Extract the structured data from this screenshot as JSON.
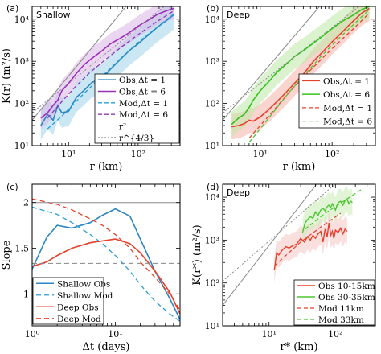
{
  "chart_data": [
    {
      "panel": "(a)",
      "title": "Shallow",
      "type": "line",
      "xscale": "log",
      "yscale": "log",
      "xlim": [
        3,
        400
      ],
      "ylim": [
        10,
        20000
      ],
      "xlabel": "r (km)",
      "ylabel": "K(r) (m²/s)",
      "xticks": [
        {
          "v": 10,
          "label": "10¹"
        },
        {
          "v": 100,
          "label": "10²"
        }
      ],
      "yticks": [
        {
          "v": 10,
          "label": "10¹"
        },
        {
          "v": 100,
          "label": "10²"
        },
        {
          "v": 1000,
          "label": "10³"
        },
        {
          "v": 10000,
          "label": "10⁴"
        }
      ],
      "legend_position": "bottom-right",
      "series": [
        {
          "name": "Obs,Δt = 1",
          "color": "#2c86c4",
          "dash": "",
          "width": 1.6,
          "band": "#9fd3ea",
          "band_w": 0.35,
          "x": [
            4,
            5,
            6,
            7,
            8,
            10,
            13,
            17,
            22,
            30,
            40,
            55,
            75,
            100,
            140,
            190,
            260,
            330
          ],
          "y": [
            30,
            55,
            40,
            90,
            60,
            65,
            140,
            210,
            320,
            380,
            650,
            1100,
            1800,
            2600,
            4200,
            6500,
            9500,
            13000
          ]
        },
        {
          "name": "Obs,Δt = 6",
          "color": "#9b2fb8",
          "dash": "",
          "width": 1.6,
          "band": "#d9b4e6",
          "band_w": 0.25,
          "x": [
            4,
            5,
            6,
            7,
            8,
            10,
            13,
            17,
            22,
            30,
            40,
            55,
            75,
            100,
            140,
            190,
            260,
            330
          ],
          "y": [
            45,
            60,
            90,
            120,
            200,
            300,
            520,
            850,
            1200,
            1750,
            2600,
            3500,
            4800,
            6800,
            9500,
            13000,
            16000,
            18000
          ]
        },
        {
          "name": "Mod,Δt = 1",
          "color": "#2a9fd6",
          "dash": "5,3",
          "width": 1.3,
          "x": [
            5,
            8,
            12,
            20,
            35,
            60,
            100,
            180,
            330
          ],
          "y": [
            25,
            50,
            100,
            230,
            550,
            1300,
            2800,
            6200,
            13500
          ]
        },
        {
          "name": "Mod,Δt = 6",
          "color": "#8e3ab3",
          "dash": "5,3",
          "width": 1.3,
          "x": [
            5,
            8,
            12,
            20,
            35,
            60,
            100,
            180,
            330
          ],
          "y": [
            45,
            110,
            230,
            530,
            1150,
            2300,
            4300,
            8500,
            16000
          ]
        },
        {
          "name": "r²",
          "color": "#888888",
          "dash": "",
          "width": 1,
          "x": [
            3,
            200
          ],
          "y": [
            40,
            178000
          ]
        },
        {
          "name": "r^{4/3}",
          "color": "#888888",
          "dash": "2,2",
          "width": 1,
          "x": [
            3,
            400
          ],
          "y": [
            60,
            40000
          ]
        }
      ]
    },
    {
      "panel": "(b)",
      "title": "Deep",
      "type": "line",
      "xscale": "log",
      "yscale": "log",
      "xlim": [
        3,
        400
      ],
      "ylim": [
        10,
        20000
      ],
      "xlabel": "r (km)",
      "ylabel": "",
      "xticks": [
        {
          "v": 10,
          "label": "10¹"
        },
        {
          "v": 100,
          "label": "10²"
        }
      ],
      "yticks": [
        {
          "v": 10,
          "label": "10¹"
        },
        {
          "v": 100,
          "label": "10²"
        },
        {
          "v": 1000,
          "label": "10³"
        },
        {
          "v": 10000,
          "label": "10⁴"
        }
      ],
      "legend_position": "bottom-right",
      "series": [
        {
          "name": "Obs,Δt = 1",
          "color": "#e8402a",
          "dash": "",
          "width": 1.6,
          "band": "#f6b3a8",
          "band_w": 0.3,
          "x": [
            4,
            5,
            6,
            7,
            8,
            10,
            13,
            17,
            22,
            30,
            40,
            55,
            75,
            100,
            140,
            190,
            260,
            330
          ],
          "y": [
            28,
            30,
            33,
            40,
            38,
            48,
            70,
            110,
            170,
            300,
            500,
            1000,
            1700,
            2900,
            5000,
            8500,
            14000,
            18000
          ]
        },
        {
          "name": "Obs,Δt = 6",
          "color": "#35c21e",
          "dash": "",
          "width": 1.6,
          "band": "#bde8a8",
          "band_w": 0.3,
          "x": [
            4,
            5,
            6,
            7,
            8,
            10,
            13,
            17,
            22,
            30,
            40,
            55,
            75,
            100,
            140,
            190,
            260,
            330
          ],
          "y": [
            32,
            45,
            55,
            80,
            120,
            200,
            320,
            550,
            800,
            1300,
            1800,
            2700,
            4000,
            6000,
            9000,
            12000,
            17000,
            20000
          ]
        },
        {
          "name": "Mod,Δt = 1",
          "color": "#e8402a",
          "dash": "5,3",
          "width": 1.3,
          "x": [
            7,
            10,
            15,
            25,
            40,
            70,
            120,
            200,
            330
          ],
          "y": [
            15,
            30,
            65,
            180,
            420,
            1100,
            2700,
            6000,
            14000
          ]
        },
        {
          "name": "Mod,Δt = 6",
          "color": "#4cc531",
          "dash": "5,3",
          "width": 1.3,
          "x": [
            7,
            10,
            15,
            25,
            40,
            70,
            120,
            200,
            330
          ],
          "y": [
            12,
            25,
            60,
            180,
            450,
            1300,
            3300,
            7500,
            17000
          ]
        },
        {
          "name": "",
          "color": "#888888",
          "dash": "",
          "width": 1,
          "x": [
            3,
            200
          ],
          "y": [
            40,
            178000
          ]
        },
        {
          "name": "",
          "color": "#888888",
          "dash": "2,2",
          "width": 1,
          "x": [
            3,
            400
          ],
          "y": [
            60,
            40000
          ]
        }
      ]
    },
    {
      "panel": "(c)",
      "title": "",
      "type": "line",
      "xscale": "log",
      "yscale": "linear",
      "xlim": [
        1,
        60
      ],
      "ylim": [
        0.65,
        2.2
      ],
      "xlabel": "Δt (days)",
      "ylabel": "Slope",
      "xticks": [
        {
          "v": 1,
          "label": "10⁰"
        },
        {
          "v": 10,
          "label": "10¹"
        }
      ],
      "yticks": [
        {
          "v": 1,
          "label": "1"
        },
        {
          "v": 1.5,
          "label": "1.5"
        },
        {
          "v": 2,
          "label": "2"
        }
      ],
      "legend_position": "bottom-left",
      "series": [
        {
          "name": "Shallow Obs",
          "color": "#2c86c4",
          "dash": "",
          "width": 1.6,
          "x": [
            1,
            1.5,
            2,
            3,
            5,
            7,
            10,
            15,
            20,
            30,
            45,
            60
          ],
          "y": [
            1.27,
            1.62,
            1.75,
            1.72,
            1.78,
            1.86,
            1.93,
            1.85,
            1.6,
            1.25,
            0.95,
            0.72
          ]
        },
        {
          "name": "Shallow Mod",
          "color": "#2a9fd6",
          "dash": "6,4",
          "width": 1.3,
          "x": [
            1,
            2,
            3,
            5,
            7,
            10,
            15,
            20,
            30,
            45,
            60
          ],
          "y": [
            1.95,
            1.87,
            1.78,
            1.65,
            1.55,
            1.42,
            1.25,
            1.1,
            0.92,
            0.78,
            0.7
          ]
        },
        {
          "name": "Deep Obs",
          "color": "#e8402a",
          "dash": "",
          "width": 1.6,
          "x": [
            1,
            1.5,
            2,
            3,
            5,
            7,
            10,
            15,
            20,
            30,
            45,
            60
          ],
          "y": [
            1.3,
            1.35,
            1.42,
            1.5,
            1.56,
            1.58,
            1.6,
            1.55,
            1.45,
            1.25,
            1.02,
            0.78
          ]
        },
        {
          "name": "Deep Mod",
          "color": "#e8402a",
          "dash": "6,4",
          "width": 1.3,
          "x": [
            1,
            2,
            3,
            5,
            7,
            10,
            15,
            20,
            30,
            45,
            60
          ],
          "y": [
            2.04,
            1.98,
            1.92,
            1.82,
            1.75,
            1.65,
            1.5,
            1.35,
            1.18,
            1.0,
            0.82
          ]
        },
        {
          "name": "",
          "color": "#888888",
          "dash": "",
          "width": 1,
          "x": [
            1,
            60
          ],
          "y": [
            2,
            2
          ]
        },
        {
          "name": "",
          "color": "#888888",
          "dash": "6,4",
          "width": 1,
          "x": [
            1,
            60
          ],
          "y": [
            1.333,
            1.333
          ]
        }
      ]
    },
    {
      "panel": "(d)",
      "title": "Deep",
      "type": "line",
      "xscale": "log",
      "yscale": "log",
      "xlim": [
        2,
        400
      ],
      "ylim": [
        10,
        20000
      ],
      "xlabel": "r* (km)",
      "ylabel": "K(r*) (m²/s)",
      "xticks": [
        {
          "v": 10,
          "label": "10¹"
        },
        {
          "v": 100,
          "label": "10²"
        }
      ],
      "yticks": [
        {
          "v": 10,
          "label": "10¹"
        },
        {
          "v": 100,
          "label": "10²"
        },
        {
          "v": 1000,
          "label": "10³"
        },
        {
          "v": 10000,
          "label": "10⁴"
        }
      ],
      "legend_position": "bottom-right",
      "series": [
        {
          "name": "Obs 10-15km",
          "color": "#e8402a",
          "dash": "",
          "width": 1.4,
          "band": "#f6c4c4",
          "band_w": 0.3,
          "x": [
            12,
            13,
            14,
            16,
            18,
            20,
            23,
            26,
            30,
            34,
            38,
            42,
            46,
            50,
            55,
            60,
            65,
            70,
            75,
            80,
            85,
            90,
            95,
            100,
            110,
            120,
            130,
            140,
            150
          ],
          "y": [
            200,
            500,
            450,
            600,
            700,
            650,
            750,
            800,
            1100,
            900,
            1200,
            1000,
            1300,
            1100,
            1400,
            1600,
            900,
            1800,
            1200,
            2500,
            1300,
            1600,
            1100,
            1700,
            1500,
            1900,
            1400,
            1800,
            1600
          ]
        },
        {
          "name": "Obs 30-35km",
          "color": "#4cc531",
          "dash": "",
          "width": 1.4,
          "band": "#c9ecb4",
          "band_w": 0.3,
          "x": [
            32,
            35,
            38,
            42,
            46,
            50,
            55,
            60,
            65,
            70,
            75,
            80,
            85,
            90,
            95,
            100,
            110,
            120,
            130,
            140,
            150,
            160,
            170,
            180
          ],
          "y": [
            1500,
            2500,
            3000,
            3500,
            3200,
            4500,
            3800,
            5000,
            5500,
            4800,
            6000,
            6500,
            5800,
            7000,
            6000,
            5000,
            7500,
            8000,
            6500,
            8500,
            9000,
            7000,
            8000,
            7500
          ]
        },
        {
          "name": "Mod 11km",
          "color": "#e8402a",
          "dash": "5,3",
          "width": 1.2,
          "x": [
            12,
            30,
            60,
            120
          ],
          "y": [
            250,
            900,
            2000,
            4200
          ]
        },
        {
          "name": "Mod 33km",
          "color": "#4cc531",
          "dash": "5,3",
          "width": 1.2,
          "x": [
            35,
            70,
            140,
            260
          ],
          "y": [
            1800,
            4200,
            8500,
            16000
          ]
        },
        {
          "name": "",
          "color": "#888888",
          "dash": "",
          "width": 1,
          "x": [
            2,
            130
          ],
          "y": [
            30,
            126000
          ]
        },
        {
          "name": "",
          "color": "#888888",
          "dash": "2,2",
          "width": 1,
          "x": [
            2,
            400
          ],
          "y": [
            110,
            130000
          ]
        }
      ]
    }
  ]
}
